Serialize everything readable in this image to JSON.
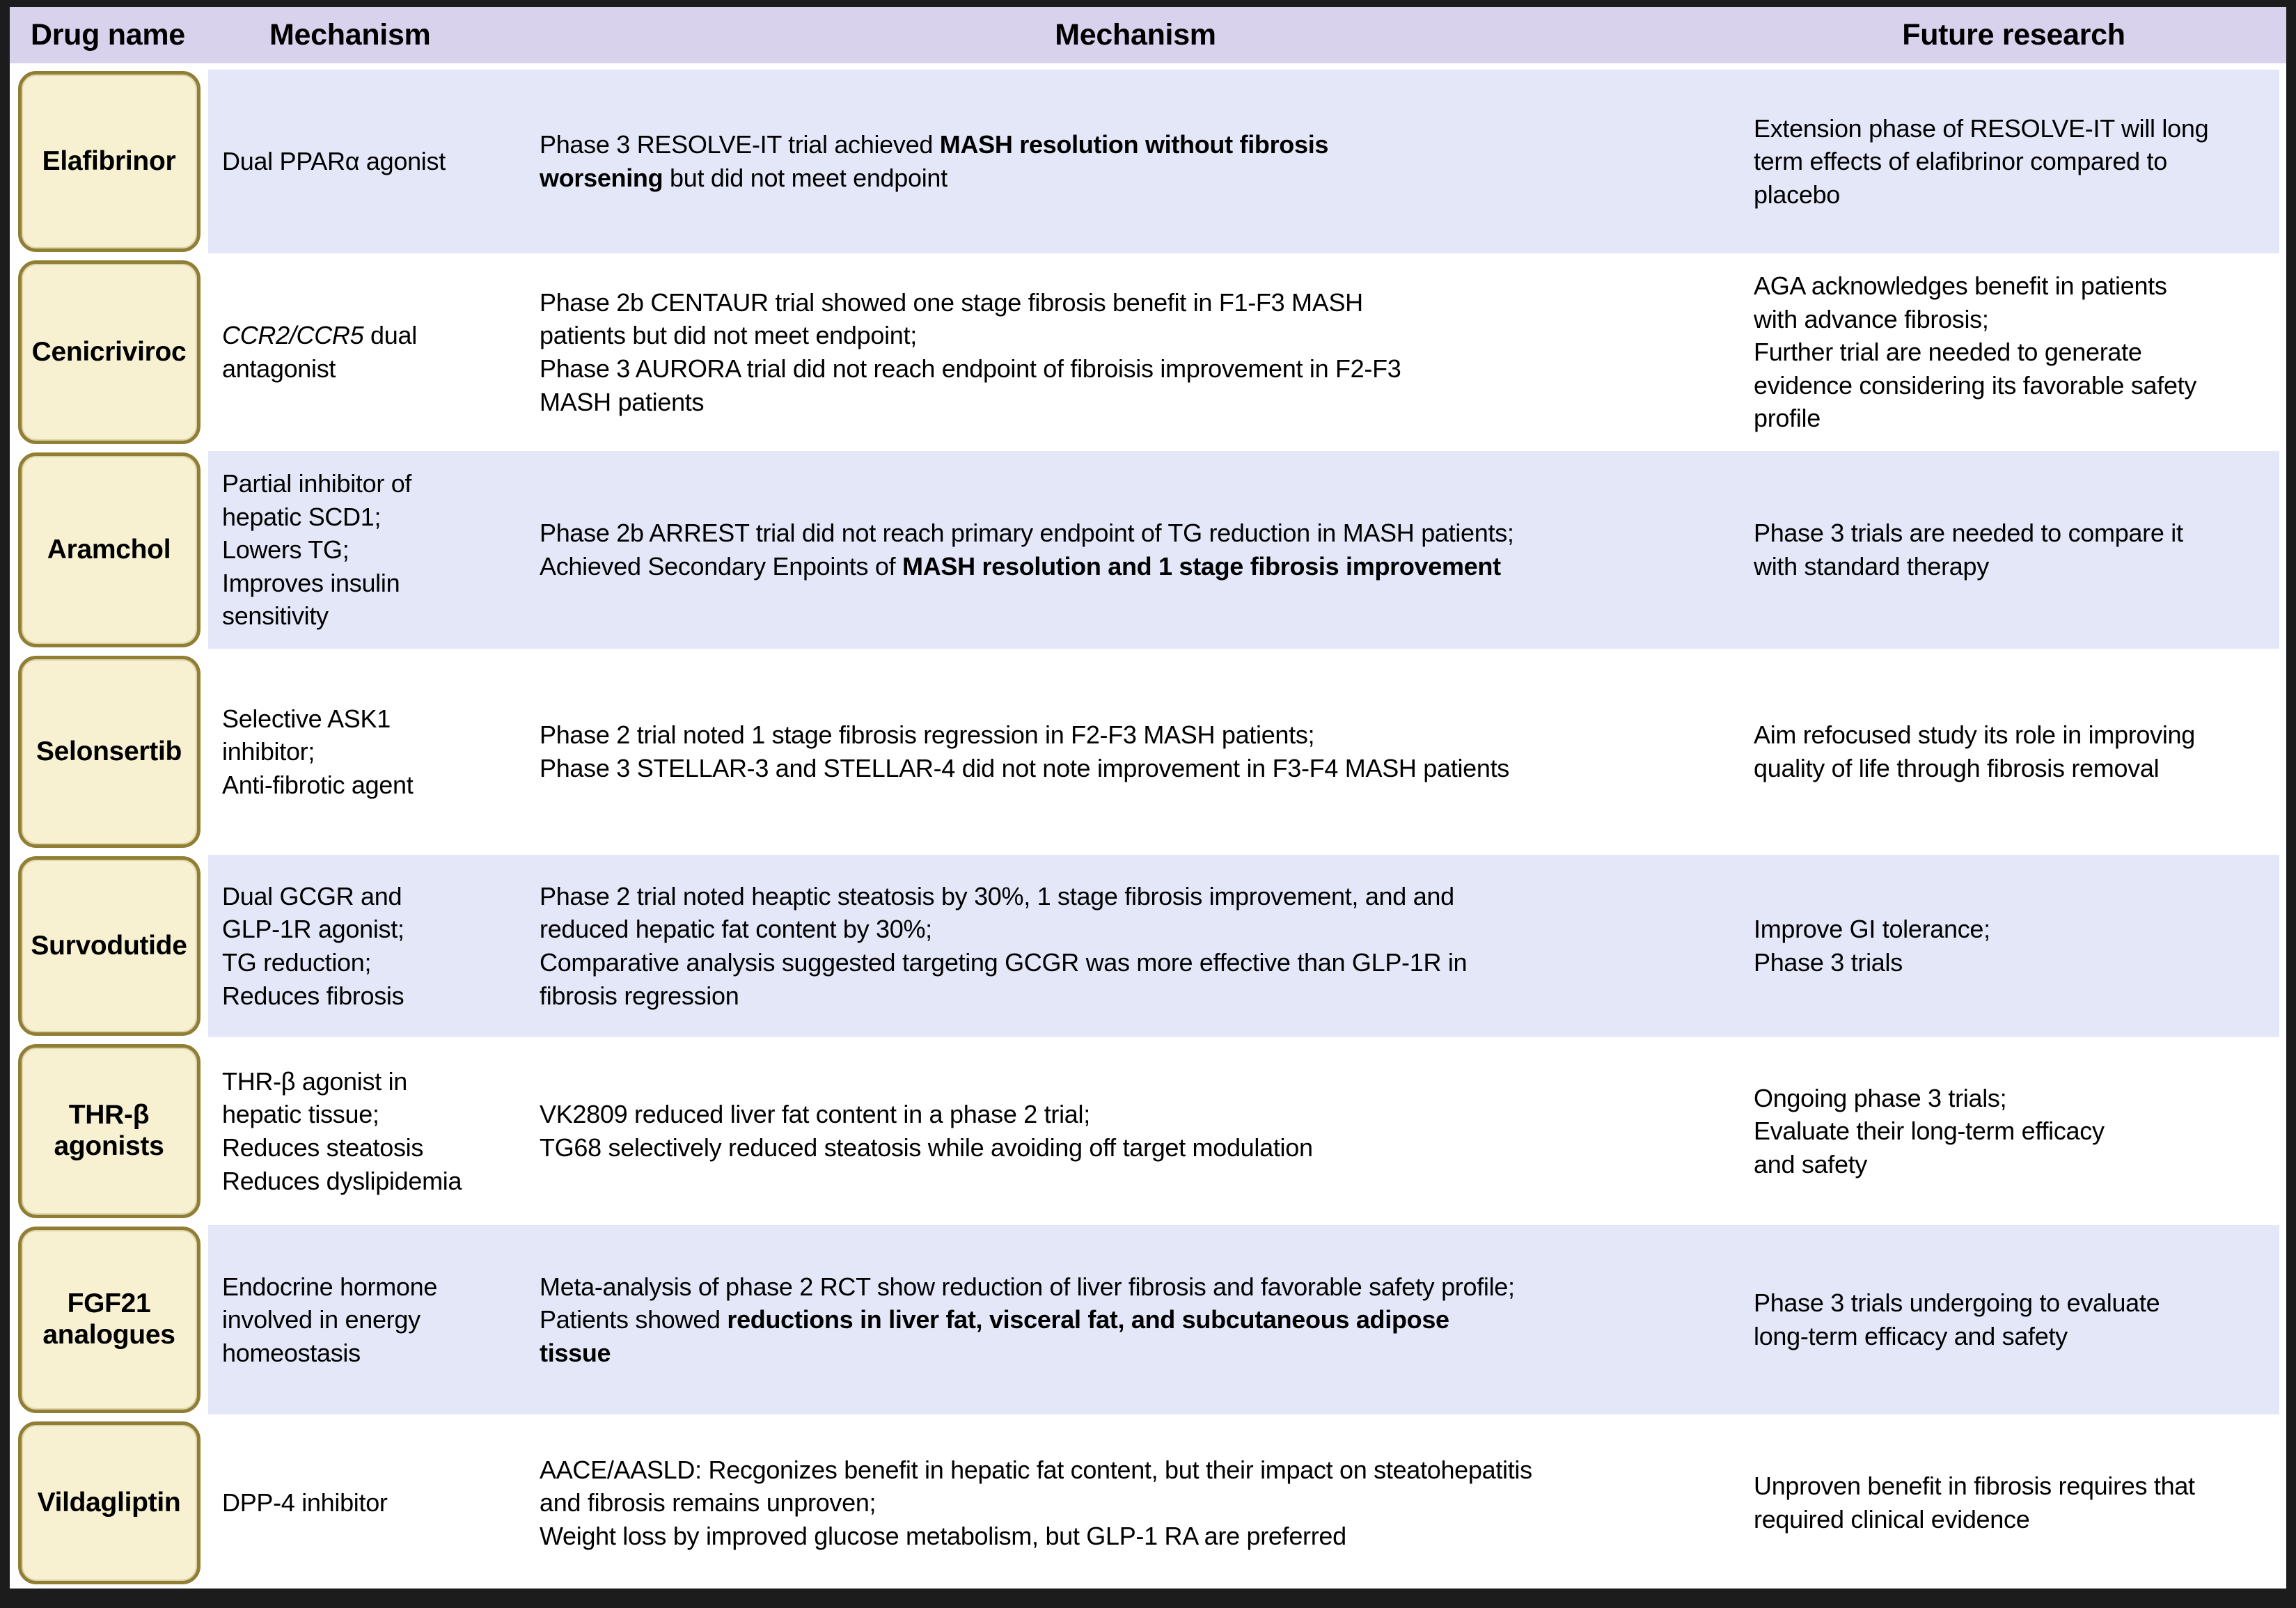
{
  "header": {
    "columns": [
      "Drug name",
      "Mechanism",
      "Mechanism",
      "Future research"
    ]
  },
  "colors": {
    "header_bg": "#d9d2ec",
    "band_bg": "#e3e7f8",
    "row_alt_bg": "#ffffff",
    "drug_box_bg": "#f7f1d2",
    "drug_box_border": "#8f7e33",
    "frame": "#1c1c1c"
  },
  "rows": [
    {
      "drug": "Elafibrinor",
      "mechanism": [
        {
          "t": "Dual PPARα agonist"
        }
      ],
      "trials": [
        {
          "t": "Phase 3 RESOLVE-IT trial achieved "
        },
        {
          "t": "MASH resolution without fibrosis\nworsening",
          "b": true
        },
        {
          "t": " but did not meet endpoint"
        }
      ],
      "future": [
        {
          "t": "Extension phase of RESOLVE-IT will long\nterm effects of elafibrinor compared to\nplacebo"
        }
      ]
    },
    {
      "drug": "Cenicriviroc",
      "mechanism": [
        {
          "t": "CCR2/CCR5",
          "i": true
        },
        {
          "t": " dual\nantagonist"
        }
      ],
      "trials": [
        {
          "t": "Phase 2b CENTAUR trial showed one stage fibrosis benefit in F1-F3 MASH\npatients but did not meet endpoint;\nPhase 3 AURORA trial did not reach endpoint of fibroisis improvement in F2-F3\nMASH patients"
        }
      ],
      "future": [
        {
          "t": "AGA acknowledges benefit in patients\nwith advance fibrosis;\nFurther trial are needed to generate\nevidence considering its favorable safety\nprofile"
        }
      ]
    },
    {
      "drug": "Aramchol",
      "mechanism": [
        {
          "t": "Partial inhibitor of\nhepatic SCD1;\nLowers TG;\nImproves insulin\nsensitivity"
        }
      ],
      "trials": [
        {
          "t": "Phase 2b ARREST trial did not reach primary endpoint of TG reduction in MASH patients;\nAchieved Secondary Enpoints of "
        },
        {
          "t": "MASH resolution and 1 stage fibrosis improvement",
          "b": true
        }
      ],
      "future": [
        {
          "t": "Phase 3 trials are needed to compare it\nwith standard therapy"
        }
      ]
    },
    {
      "drug": "Selonsertib",
      "mechanism": [
        {
          "t": "Selective ASK1\ninhibitor;\nAnti-fibrotic agent"
        }
      ],
      "trials": [
        {
          "t": "Phase 2 trial noted 1 stage fibrosis regression in F2-F3 MASH patients;\nPhase 3 STELLAR-3 and STELLAR-4 did not note improvement in F3-F4 MASH patients"
        }
      ],
      "future": [
        {
          "t": "Aim refocused study its role in improving\nquality of life through fibrosis removal"
        }
      ]
    },
    {
      "drug": "Survodutide",
      "mechanism": [
        {
          "t": "Dual GCGR and\nGLP-1R agonist;\nTG reduction;\nReduces fibrosis"
        }
      ],
      "trials": [
        {
          "t": "Phase 2 trial noted heaptic steatosis by 30%, 1 stage fibrosis improvement, and and\nreduced hepatic fat content by 30%;\nComparative analysis suggested targeting GCGR was more effective than GLP-1R in\nfibrosis regression"
        }
      ],
      "future": [
        {
          "t": "Improve GI tolerance;\nPhase 3 trials"
        }
      ]
    },
    {
      "drug": "THR-β\nagonists",
      "mechanism": [
        {
          "t": "THR-β agonist in\nhepatic tissue;\nReduces steatosis\nReduces dyslipidemia"
        }
      ],
      "trials": [
        {
          "t": "VK2809 reduced liver fat content in a phase 2 trial;\nTG68 selectively reduced steatosis while avoiding off target modulation"
        }
      ],
      "future": [
        {
          "t": "Ongoing phase 3 trials;\nEvaluate their long-term efficacy\nand safety"
        }
      ]
    },
    {
      "drug": "FGF21\nanalogues",
      "mechanism": [
        {
          "t": "Endocrine hormone\ninvolved in energy\nhomeostasis"
        }
      ],
      "trials": [
        {
          "t": "Meta-analysis of phase 2 RCT show reduction of liver fibrosis and favorable safety profile;\nPatients showed "
        },
        {
          "t": "reductions in liver fat, visceral fat, and subcutaneous adipose\ntissue",
          "b": true
        }
      ],
      "future": [
        {
          "t": "Phase 3 trials undergoing to evaluate\nlong-term efficacy and safety"
        }
      ]
    },
    {
      "drug": "Vildagliptin",
      "mechanism": [
        {
          "t": "DPP-4 inhibitor"
        }
      ],
      "trials": [
        {
          "t": "AACE/AASLD: Recgonizes benefit in hepatic fat content, but their impact on steatohepatitis\nand fibrosis remains unproven;\nWeight loss by improved glucose metabolism, but GLP-1 RA are preferred"
        }
      ],
      "future": [
        {
          "t": "Unproven benefit in fibrosis requires that\nrequired clinical evidence"
        }
      ]
    }
  ]
}
